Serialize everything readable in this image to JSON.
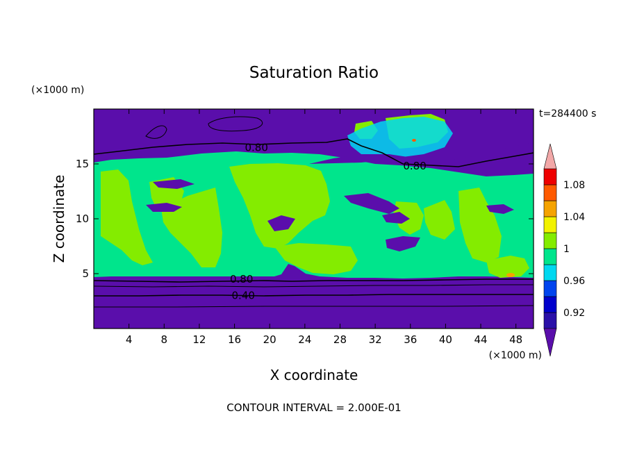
{
  "chart_data": {
    "type": "heatmap",
    "title": "Saturation Ratio",
    "xlabel": "X coordinate",
    "ylabel": "Z coordinate",
    "x_unit": "(×1000 m)",
    "y_unit": "(×1000 m)",
    "time_label": "t=284400 s",
    "footer": "CONTOUR INTERVAL = 2.000E-01",
    "xlim": [
      0,
      50
    ],
    "ylim": [
      0,
      20
    ],
    "x_ticks": [
      4,
      8,
      12,
      16,
      20,
      24,
      28,
      32,
      36,
      40,
      44,
      48
    ],
    "y_ticks": [
      5,
      10,
      15
    ],
    "contour_labels": [
      {
        "value": "0.80",
        "x": 18.5,
        "z": 16.5
      },
      {
        "value": "0.80",
        "x": 36.5,
        "z": 14.8
      },
      {
        "value": "0.80",
        "x": 16.8,
        "z": 4.5
      },
      {
        "value": "0.40",
        "x": 17.0,
        "z": 3.0
      }
    ],
    "colorbar": {
      "levels": [
        0.9,
        0.92,
        0.94,
        0.96,
        0.98,
        1.0,
        1.02,
        1.04,
        1.06,
        1.08,
        1.1
      ],
      "colors": [
        "#5a0eab",
        "#2a10a8",
        "#0000cc",
        "#0044ee",
        "#00d8f0",
        "#00e58c",
        "#84ec00",
        "#f2f200",
        "#f5a300",
        "#ff5a00",
        "#ee0000",
        "#f2a8a8"
      ],
      "tick_labels": [
        "0.92",
        "0.96",
        "1",
        "1.04",
        "1.08"
      ],
      "tick_values": [
        0.92,
        0.96,
        1.0,
        1.04,
        1.08
      ],
      "extend": "both"
    },
    "regions": {
      "lower_dry_layer": {
        "z_top": 4.5,
        "value_below": 0.8
      },
      "moist_layer": {
        "z_bottom": 4.5,
        "z_top": 15.3,
        "dominant_values": [
          0.98,
          1.0
        ]
      },
      "upper_dry_layer": {
        "z_bottom": 15.3,
        "value_below": 0.8
      }
    }
  }
}
